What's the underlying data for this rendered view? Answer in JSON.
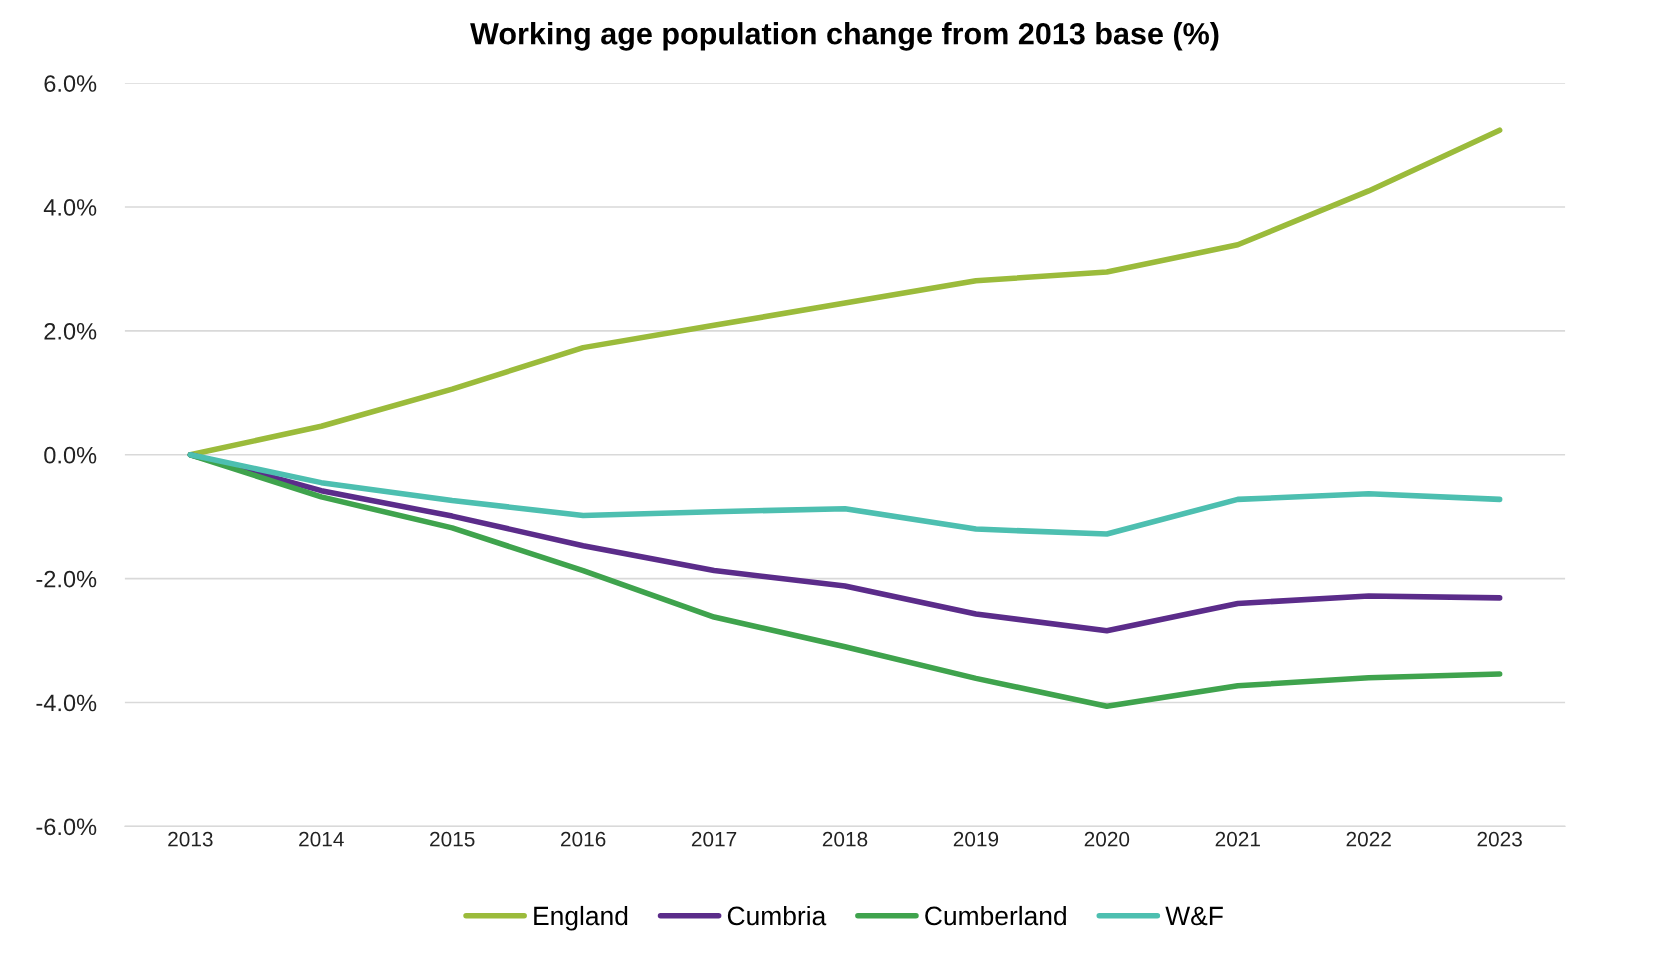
{
  "chart_data": {
    "type": "line",
    "title": "Working age population change from 2013 base (%)",
    "categories": [
      "2013",
      "2014",
      "2015",
      "2016",
      "2017",
      "2018",
      "2019",
      "2020",
      "2021",
      "2022",
      "2023"
    ],
    "series": [
      {
        "name": "England",
        "color": "#9bbb3b",
        "values": [
          0,
          0.46,
          1.06,
          1.73,
          2.09,
          2.45,
          2.81,
          2.95,
          3.39,
          4.26,
          5.24
        ]
      },
      {
        "name": "Cumbria",
        "color": "#5b2c8a",
        "values": [
          0,
          -0.58,
          -0.99,
          -1.47,
          -1.87,
          -2.12,
          -2.57,
          -2.84,
          -2.4,
          -2.28,
          -2.31
        ]
      },
      {
        "name": "Cumberland",
        "color": "#3fa34d",
        "values": [
          0,
          -0.68,
          -1.18,
          -1.87,
          -2.62,
          -3.1,
          -3.61,
          -4.06,
          -3.73,
          -3.6,
          -3.54
        ]
      },
      {
        "name": "W&F",
        "color": "#4dbfb0",
        "values": [
          0,
          -0.45,
          -0.74,
          -0.98,
          -0.92,
          -0.87,
          -1.2,
          -1.28,
          -0.72,
          -0.63,
          -0.72
        ]
      }
    ],
    "ylim": [
      -6,
      6
    ],
    "yticks": [
      {
        "value": -6,
        "label": "-6.0%"
      },
      {
        "value": -4,
        "label": "-4.0%"
      },
      {
        "value": -2,
        "label": "-2.0%"
      },
      {
        "value": 0,
        "label": "0.0%"
      },
      {
        "value": 2,
        "label": "2.0%"
      },
      {
        "value": 4,
        "label": "4.0%"
      },
      {
        "value": 6,
        "label": "6.0%"
      }
    ],
    "grid": "y",
    "legend": "bottom",
    "marker": "none",
    "line_style": "solid"
  }
}
